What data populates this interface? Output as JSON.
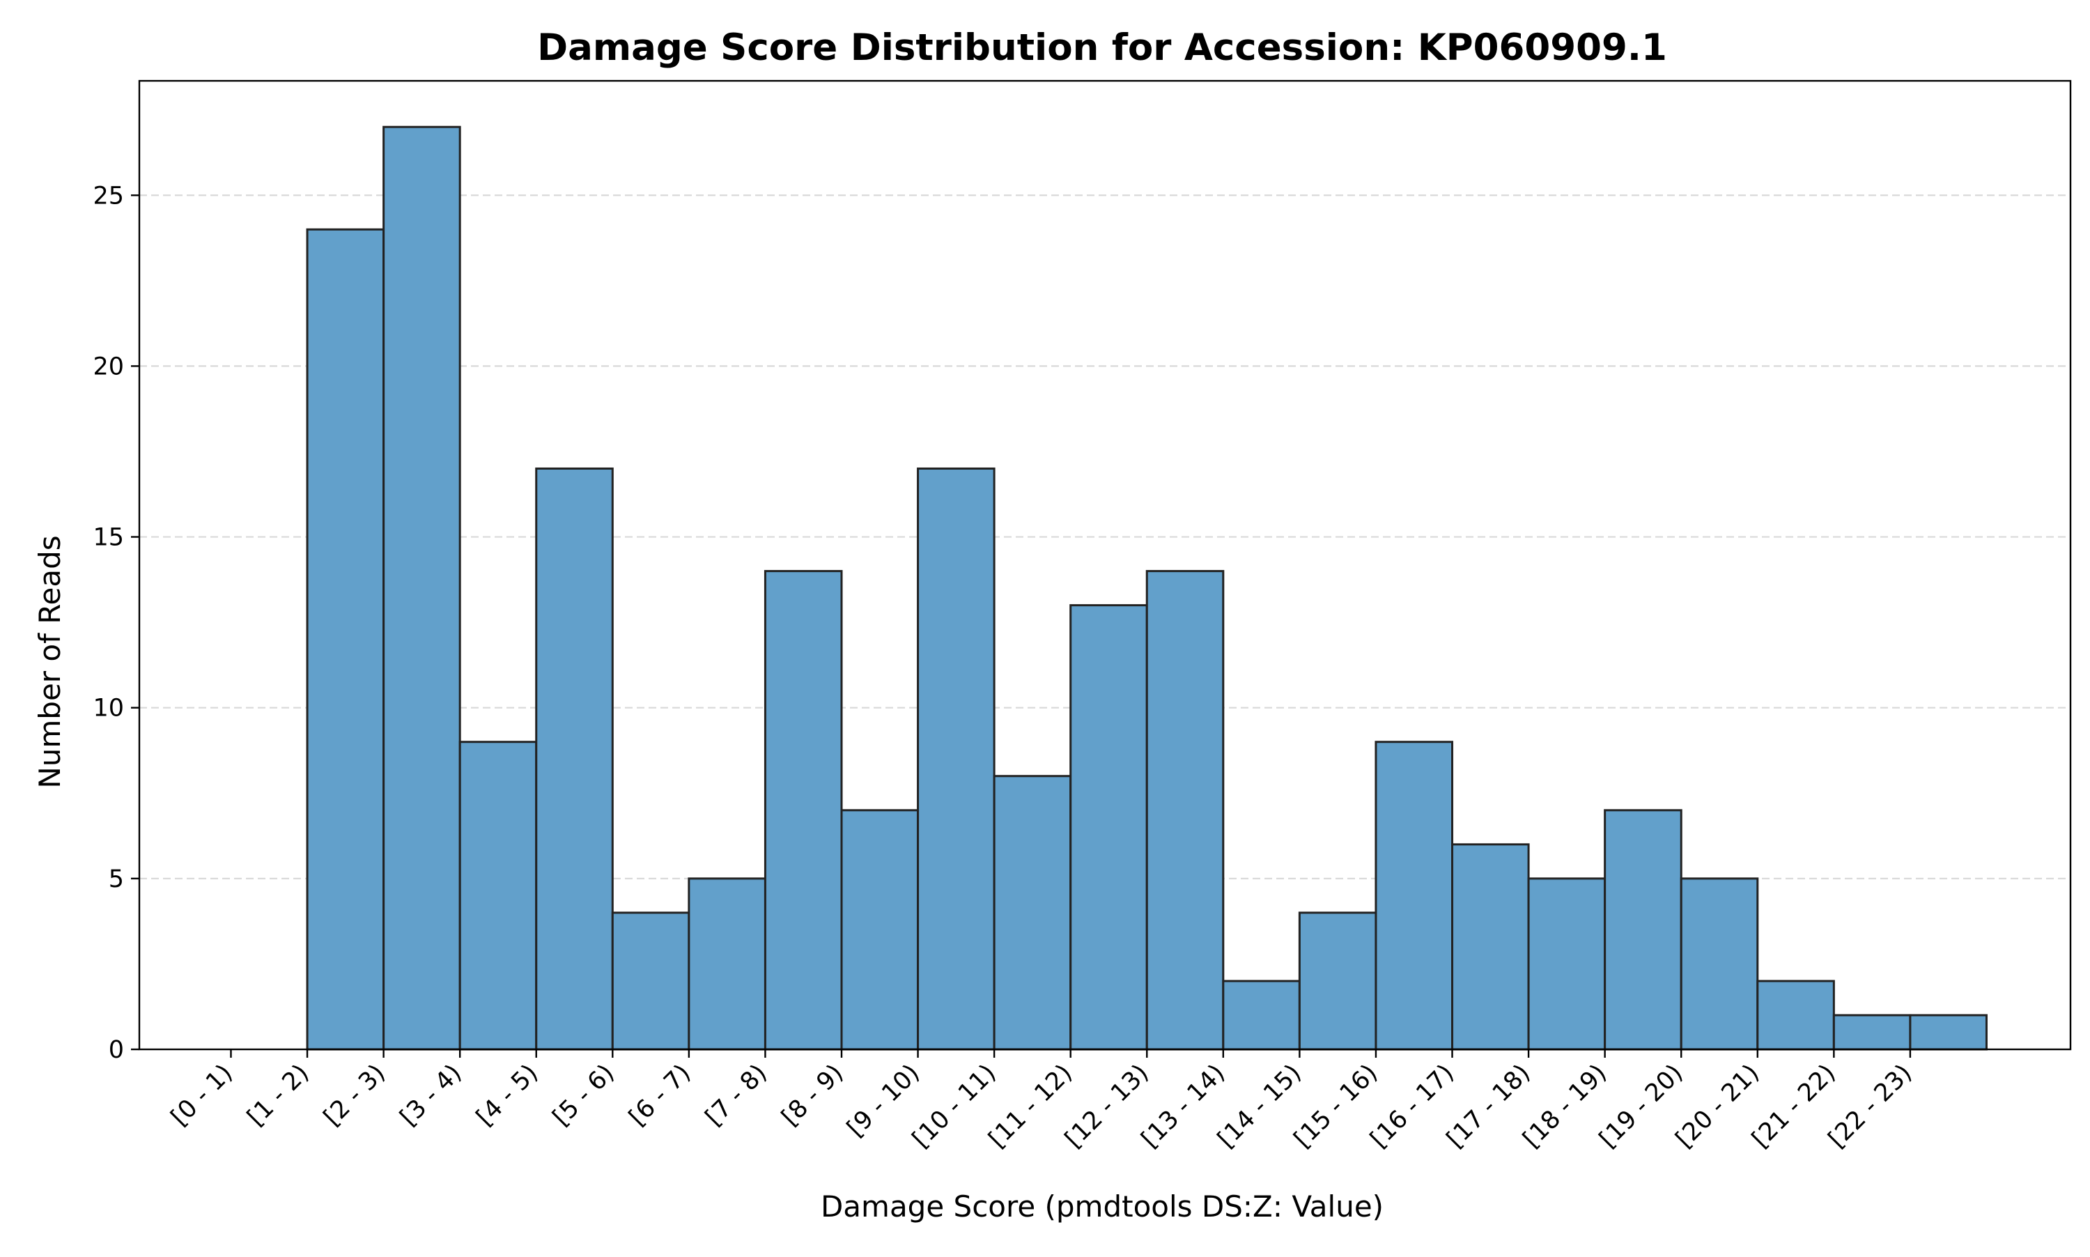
{
  "chart_data": {
    "type": "bar",
    "title": "Damage Score Distribution for Accession: KP060909.1",
    "xlabel": "Damage Score (pmdtools DS:Z: Value)",
    "ylabel": "Number of Reads",
    "categories": [
      "[0 - 1)",
      "[1 - 2)",
      "[2 - 3)",
      "[3 - 4)",
      "[4 - 5)",
      "[5 - 6)",
      "[6 - 7)",
      "[7 - 8)",
      "[8 - 9)",
      "[9 - 10)",
      "[10 - 11)",
      "[11 - 12)",
      "[12 - 13)",
      "[13 - 14)",
      "[14 - 15)",
      "[15 - 16)",
      "[16 - 17)",
      "[17 - 18)",
      "[18 - 19)",
      "[19 - 20)",
      "[20 - 21)",
      "[21 - 22)",
      "[22 - 23)"
    ],
    "bins": [
      {
        "start": 0,
        "end": 1,
        "count": 0
      },
      {
        "start": 1,
        "end": 2,
        "count": 24
      },
      {
        "start": 2,
        "end": 3,
        "count": 27
      },
      {
        "start": 3,
        "end": 4,
        "count": 9
      },
      {
        "start": 4,
        "end": 5,
        "count": 17
      },
      {
        "start": 5,
        "end": 6,
        "count": 4
      },
      {
        "start": 6,
        "end": 7,
        "count": 5
      },
      {
        "start": 7,
        "end": 8,
        "count": 14
      },
      {
        "start": 8,
        "end": 9,
        "count": 7
      },
      {
        "start": 9,
        "end": 10,
        "count": 17
      },
      {
        "start": 10,
        "end": 11,
        "count": 8
      },
      {
        "start": 11,
        "end": 12,
        "count": 13
      },
      {
        "start": 12,
        "end": 13,
        "count": 14
      },
      {
        "start": 13,
        "end": 14,
        "count": 2
      },
      {
        "start": 14,
        "end": 15,
        "count": 4
      },
      {
        "start": 15,
        "end": 16,
        "count": 9
      },
      {
        "start": 16,
        "end": 17,
        "count": 6
      },
      {
        "start": 17,
        "end": 18,
        "count": 5
      },
      {
        "start": 18,
        "end": 19,
        "count": 7
      },
      {
        "start": 19,
        "end": 20,
        "count": 5
      },
      {
        "start": 20,
        "end": 21,
        "count": 2
      },
      {
        "start": 21,
        "end": 22,
        "count": 1
      },
      {
        "start": 22,
        "end": 23,
        "count": 1
      }
    ],
    "x_range": [
      -1.2,
      24.1
    ],
    "ylim": [
      0,
      28.35
    ],
    "y_ticks": [
      0,
      5,
      10,
      15,
      20,
      25
    ],
    "grid": {
      "y": true,
      "x": false,
      "style": "dashed"
    },
    "colors": {
      "bar_fill": "#62a0cb",
      "bar_edge": "#222222",
      "grid": "#d9d9d9",
      "axis": "#000000"
    }
  }
}
